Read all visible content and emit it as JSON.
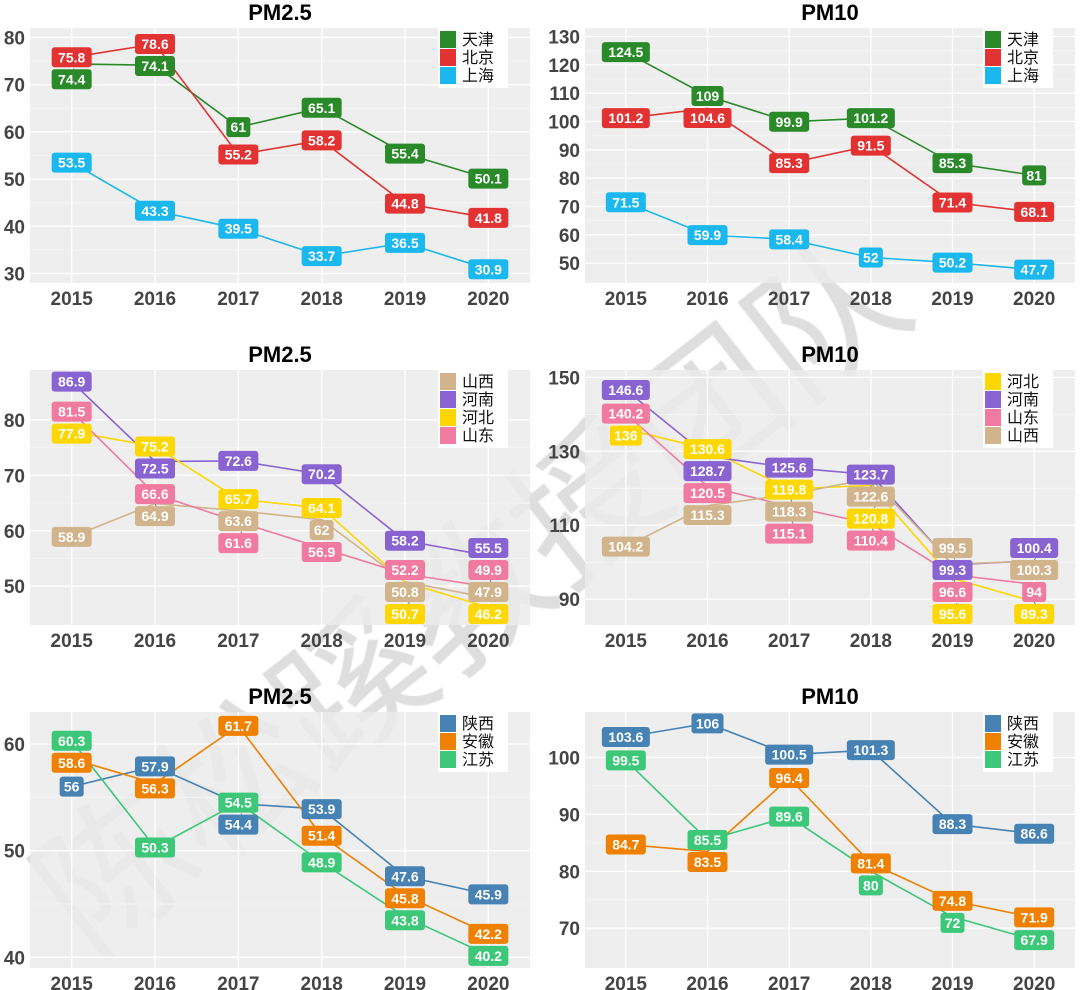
{
  "watermark": "陈松蹊教授团队",
  "chart_data": [
    {
      "type": "line",
      "title": "PM2.5",
      "x": [
        "2015",
        "2016",
        "2017",
        "2018",
        "2019",
        "2020"
      ],
      "ylim": [
        28,
        82
      ],
      "yticks": [
        30,
        40,
        50,
        60,
        70,
        80
      ],
      "grid": true,
      "legend": "top-right",
      "series": [
        {
          "name": "天津",
          "color": "#2a8a2a",
          "values": [
            74.4,
            74.1,
            61,
            65.1,
            55.4,
            50.1
          ]
        },
        {
          "name": "北京",
          "color": "#e23232",
          "values": [
            75.8,
            78.6,
            55.2,
            58.2,
            44.8,
            41.8
          ]
        },
        {
          "name": "上海",
          "color": "#1ab8ee",
          "values": [
            53.5,
            43.3,
            39.5,
            33.7,
            36.5,
            30.9
          ]
        }
      ]
    },
    {
      "type": "line",
      "title": "PM10",
      "x": [
        "2015",
        "2016",
        "2017",
        "2018",
        "2019",
        "2020"
      ],
      "ylim": [
        43,
        133
      ],
      "yticks": [
        50,
        60,
        70,
        80,
        90,
        100,
        110,
        120,
        130
      ],
      "grid": true,
      "legend": "top-right",
      "series": [
        {
          "name": "天津",
          "color": "#2a8a2a",
          "values": [
            124.5,
            109,
            99.9,
            101.2,
            85.3,
            81
          ]
        },
        {
          "name": "北京",
          "color": "#e23232",
          "values": [
            101.2,
            104.6,
            85.3,
            91.5,
            71.4,
            68.1
          ]
        },
        {
          "name": "上海",
          "color": "#1ab8ee",
          "values": [
            71.5,
            59.9,
            58.4,
            52,
            50.2,
            47.7
          ]
        }
      ]
    },
    {
      "type": "line",
      "title": "PM2.5",
      "x": [
        "2015",
        "2016",
        "2017",
        "2018",
        "2019",
        "2020"
      ],
      "ylim": [
        43,
        89
      ],
      "yticks": [
        50,
        60,
        70,
        80
      ],
      "grid": true,
      "legend": "top-right",
      "series": [
        {
          "name": "山西",
          "color": "#d2b48c",
          "values": [
            58.9,
            64.9,
            63.6,
            62,
            50.8,
            47.9
          ]
        },
        {
          "name": "河南",
          "color": "#8a63d2",
          "values": [
            86.9,
            72.5,
            72.6,
            70.2,
            58.2,
            55.5
          ]
        },
        {
          "name": "河北",
          "color": "#ffd700",
          "values": [
            77.9,
            75.2,
            65.7,
            64.1,
            50.7,
            46.2
          ]
        },
        {
          "name": "山东",
          "color": "#f07aa0",
          "values": [
            81.5,
            66.6,
            61.6,
            56.9,
            52.2,
            49.9
          ]
        }
      ]
    },
    {
      "type": "line",
      "title": "PM10",
      "x": [
        "2015",
        "2016",
        "2017",
        "2018",
        "2019",
        "2020"
      ],
      "ylim": [
        83,
        152
      ],
      "yticks": [
        90,
        110,
        130,
        150
      ],
      "grid": true,
      "legend": "top-right",
      "series": [
        {
          "name": "河北",
          "color": "#ffd700",
          "values": [
            136,
            130.6,
            119.8,
            120.8,
            95.6,
            89.3
          ]
        },
        {
          "name": "河南",
          "color": "#8a63d2",
          "values": [
            146.6,
            128.7,
            125.6,
            123.7,
            99.3,
            100.4
          ]
        },
        {
          "name": "山东",
          "color": "#f07aa0",
          "values": [
            140.2,
            120.5,
            115.1,
            110.4,
            96.6,
            94
          ]
        },
        {
          "name": "山西",
          "color": "#d2b48c",
          "values": [
            104.2,
            115.3,
            118.3,
            122.6,
            99.5,
            100.3
          ]
        }
      ]
    },
    {
      "type": "line",
      "title": "PM2.5",
      "x": [
        "2015",
        "2016",
        "2017",
        "2018",
        "2019",
        "2020"
      ],
      "ylim": [
        39,
        63
      ],
      "yticks": [
        40,
        50,
        60
      ],
      "grid": true,
      "legend": "top-right",
      "series": [
        {
          "name": "陕西",
          "color": "#4682b4",
          "values": [
            56,
            57.9,
            54.4,
            53.9,
            47.6,
            45.9
          ]
        },
        {
          "name": "安徽",
          "color": "#f08000",
          "values": [
            58.6,
            56.3,
            61.7,
            51.4,
            45.8,
            42.2
          ]
        },
        {
          "name": "江苏",
          "color": "#3cc878",
          "values": [
            60.3,
            50.3,
            54.5,
            48.9,
            43.8,
            40.2
          ]
        }
      ]
    },
    {
      "type": "line",
      "title": "PM10",
      "x": [
        "2015",
        "2016",
        "2017",
        "2018",
        "2019",
        "2020"
      ],
      "ylim": [
        63,
        108
      ],
      "yticks": [
        70,
        80,
        90,
        100
      ],
      "grid": true,
      "legend": "top-right",
      "series": [
        {
          "name": "陕西",
          "color": "#4682b4",
          "values": [
            103.6,
            106,
            100.5,
            101.3,
            88.3,
            86.6
          ]
        },
        {
          "name": "安徽",
          "color": "#f08000",
          "values": [
            84.7,
            83.5,
            96.4,
            81.4,
            74.8,
            71.9
          ]
        },
        {
          "name": "江苏",
          "color": "#3cc878",
          "values": [
            99.5,
            85.5,
            89.6,
            80,
            72,
            67.9
          ]
        }
      ]
    }
  ]
}
